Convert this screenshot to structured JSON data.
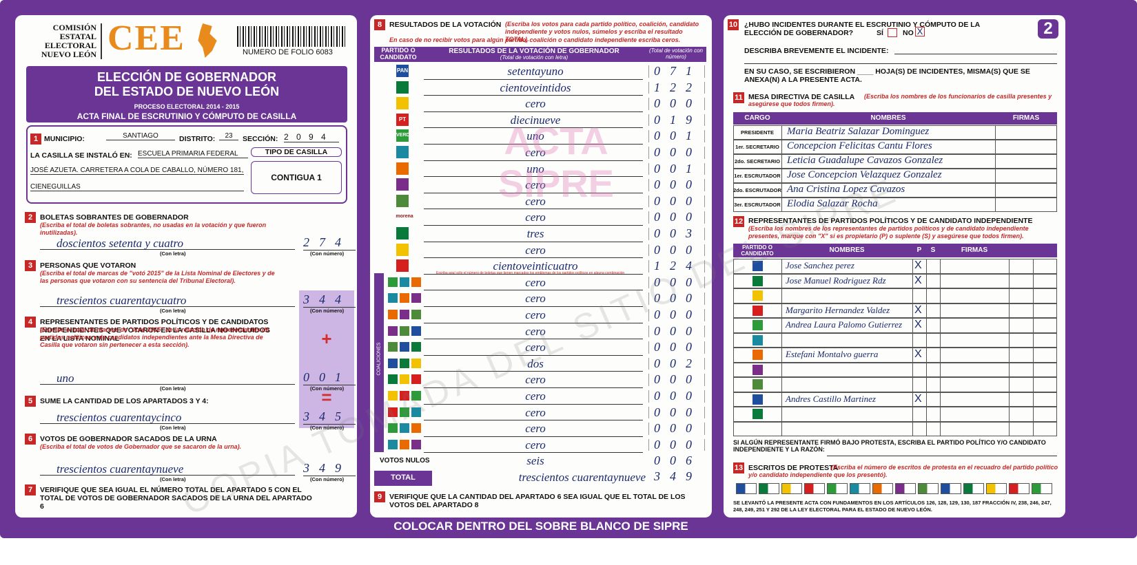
{
  "header": {
    "org_lines": [
      "COMISIÓN",
      "ESTATAL",
      "ELECTORAL",
      "NUEVO LEÓN"
    ],
    "logo": "CEE",
    "folio": "NUMERO DE FOLIO 6083",
    "title_lines": [
      "ELECCIÓN DE GOBERNADOR",
      "DEL ESTADO DE NUEVO LEÓN"
    ],
    "process": "PROCESO ELECTORAL 2014 - 2015",
    "act": "ACTA FINAL DE ESCRUTINIO Y CÓMPUTO DE CASILLA"
  },
  "section1": {
    "number": "1",
    "municipio_label": "MUNICIPIO:",
    "municipio": "SANTIAGO",
    "distrito_label": "DISTRITO:",
    "distrito": "23",
    "seccion_label": "SECCIÓN:",
    "seccion": "2 0 9 4",
    "installed_label": "LA CASILLA SE INSTALÓ EN:",
    "address_lines": [
      "ESCUELA PRIMARIA FEDERAL",
      "JOSÉ AZUETA. CARRETERA A COLA DE CABALLO, NÚMERO 181,",
      "CIENEGUILLAS"
    ],
    "tipo_label": "TIPO DE CASILLA",
    "tipo": "CONTIGUA 1"
  },
  "left": {
    "letter_label": "(Con letra)",
    "number_label": "(Con número)",
    "plus": "+",
    "equals": "=",
    "items": [
      {
        "number": "2",
        "title": "BOLETAS SOBRANTES DE GOBERNADOR",
        "note": "(Escriba el total de boletas sobrantes, no usadas en la votación y que fueron inutilizadas).",
        "words": "doscientos setenta y cuatro",
        "digits": "274"
      },
      {
        "number": "3",
        "title": "PERSONAS QUE VOTARON",
        "note": "(Escriba el total de marcas de \"votó 2015\" de la Lista Nominal de Electores y de las personas que votaron con su sentencia del Tribunal Electoral).",
        "words": "trescientos cuarentaycuatro",
        "digits": "344"
      },
      {
        "number": "4",
        "title": "REPRESENTANTES DE PARTIDOS POLÍTICOS Y DE CANDIDATOS INDEPENDIENTES QUE VOTARON EN LA CASILLA NO INCLUIDOS EN LA LISTA NOMINAL",
        "note": "(Escriba el total de marcas de \"votó 2015\" de la relación de representantes de partidos políticos y de candidatos independientes ante la Mesa Directiva de Casilla que votaron sin pertenecer a esta sección).",
        "words": "uno",
        "digits": "001"
      },
      {
        "number": "5",
        "title": "SUME LA CANTIDAD DE LOS APARTADOS 3 Y 4:",
        "words": "trescientos cuarentaycinco",
        "digits": "345"
      },
      {
        "number": "6",
        "title": "VOTOS DE GOBERNADOR SACADOS DE LA URNA",
        "note": "(Escriba el total de votos de Gobernador que se sacaron de la urna).",
        "words": "trescientos cuarentaynueve",
        "digits": "349"
      },
      {
        "number": "7",
        "title": "VERIFIQUE QUE SEA IGUAL EL NÚMERO TOTAL DEL APARTADO 5 CON EL TOTAL DE VOTOS DE GOBERNADOR SACADOS DE LA URNA DEL APARTADO 6"
      }
    ]
  },
  "section8": {
    "number": "8",
    "title": "RESULTADOS DE LA VOTACIÓN",
    "note": "(Escriba los votos para cada partido político, coalición, candidato independiente y votos nulos, súmelos y escriba el resultado TOTAL).",
    "note2": "En caso de no recibir votos para algún partido, coalición o candidato independiente escriba ceros.",
    "col1": "PARTIDO O CANDIDATO",
    "col2": "RESULTADOS DE LA VOTACIÓN DE GOBERNADOR",
    "col2_sub": "(Total de votación con letra)",
    "col3": "(Total de votación con número)",
    "coalition_note": "Escriba aquí sólo el número de boletas que tienen marcados los emblemas de los partidos políticos en alguna combinación",
    "coalitions_label": "COALICIONES",
    "watermark": [
      "ACTA",
      "SIPRE"
    ],
    "rows": [
      {
        "logo": "PAN",
        "words": "setentayuno",
        "digits": "071"
      },
      {
        "words": "cientoveintidos",
        "digits": "122"
      },
      {
        "words": "cero",
        "digits": "000"
      },
      {
        "logo": "PT",
        "words": "diecinueve",
        "digits": "019"
      },
      {
        "logo": "VERDE",
        "words": "uno",
        "digits": "001"
      },
      {
        "words": "cero",
        "digits": "000"
      },
      {
        "words": "uno",
        "digits": "001"
      },
      {
        "words": "cero",
        "digits": "000"
      },
      {
        "words": "cero",
        "digits": "000"
      },
      {
        "logo": "morena",
        "words": "cero",
        "digits": "000"
      },
      {
        "words": "tres",
        "digits": "003"
      },
      {
        "words": "cero",
        "digits": "000"
      },
      {
        "words": "cientoveinticuatro",
        "digits": "124"
      },
      {
        "words": "cero",
        "digits": "000"
      },
      {
        "words": "cero",
        "digits": "000"
      },
      {
        "words": "cero",
        "digits": "000"
      },
      {
        "words": "cero",
        "digits": "000"
      },
      {
        "words": "cero",
        "digits": "000"
      },
      {
        "words": "dos",
        "digits": "002"
      },
      {
        "words": "cero",
        "digits": "000"
      },
      {
        "words": "cero",
        "digits": "000"
      },
      {
        "words": "cero",
        "digits": "000"
      },
      {
        "words": "cero",
        "digits": "000"
      },
      {
        "words": "cero",
        "digits": "000"
      }
    ],
    "null_votes": {
      "label": "VOTOS NULOS",
      "words": "seis",
      "digits": "006"
    },
    "total": {
      "label": "TOTAL",
      "words": "trescientos cuarentaynueve",
      "digits": "349"
    }
  },
  "section9": {
    "number": "9",
    "text": "VERIFIQUE QUE LA CANTIDAD DEL APARTADO 6 SEA IGUAL QUE EL TOTAL DE LOS VOTOS DEL APARTADO 8"
  },
  "section10": {
    "number": "10",
    "question": "¿HUBO INCIDENTES DURANTE EL ESCRUTINIO Y CÓMPUTO DE LA ELECCIÓN DE GOBERNADOR?",
    "si": "SÍ",
    "no": "NO",
    "mark": "X",
    "describe": "DESCRIBA BREVEMENTE EL INCIDENTE:",
    "sheets": "EN SU CASO, SE ESCRIBIERON ____ HOJA(S) DE INCIDENTES, MISMA(S) QUE SE ANEXA(N) A LA PRESENTE ACTA."
  },
  "page_number": "2",
  "section11": {
    "number": "11",
    "title": "MESA DIRECTIVA DE CASILLA",
    "note": "(Escriba los nombres de los funcionarios de casilla presentes y asegúrese que todos firmen).",
    "headers": [
      "CARGO",
      "NOMBRES",
      "FIRMAS"
    ],
    "rows": [
      {
        "cargo": "PRESIDENTE",
        "name": "Maria Beatriz Salazar Dominguez"
      },
      {
        "cargo": "1er. SECRETARIO",
        "name": "Concepcion Felicitas Cantu Flores"
      },
      {
        "cargo": "2do. SECRETARIO",
        "name": "Leticia Guadalupe Cavazos Gonzalez"
      },
      {
        "cargo": "1er. ESCRUTADOR",
        "name": "Jose Concepcion Velazquez Gonzalez"
      },
      {
        "cargo": "2do. ESCRUTADOR",
        "name": "Ana Cristina Lopez Cavazos"
      },
      {
        "cargo": "3er. ESCRUTADOR",
        "name": "Elodia Salazar Rocha"
      }
    ]
  },
  "section12": {
    "number": "12",
    "title": "REPRESENTANTES DE PARTIDOS POLÍTICOS Y DE CANDIDATO INDEPENDIENTE",
    "note": "(Escriba los nombres de los representantes de partidos políticos y de candidato independiente presentes, marque con \"X\" si es propietario (P) o suplente (S) y asegúrese que todos firmen).",
    "headers": [
      "PARTIDO O CANDIDATO",
      "NOMBRES",
      "P",
      "S",
      "FIRMAS"
    ],
    "mark": "X",
    "rows": [
      "Jose Sanchez perez",
      "Jose Manuel Rodriguez Rdz",
      null,
      "Margarito Hernandez Valdez",
      "Andrea Laura Palomo Gutierrez",
      null,
      "Estefani Montalvo guerra",
      null,
      null,
      "Andres Castillo Martinez",
      null,
      null
    ],
    "protest_text": "SI ALGÚN REPRESENTANTE FIRMÓ BAJO PROTESTA, ESCRIBA EL PARTIDO POLÍTICO Y/O CANDIDATO INDEPENDIENTE Y LA RAZÓN:"
  },
  "section13": {
    "number": "13",
    "title": "ESCRITOS DE PROTESTA",
    "note": "(Escriba el número de escritos de protesta en el recuadro del partido político y/o candidato independiente que los presentó)."
  },
  "footer_text": "SE LEVANTÓ LA PRESENTE ACTA CON FUNDAMENTOS EN LOS ARTÍCULOS 126, 128, 129, 130, 187 FRACCIÓN IV, 238, 246, 247, 248, 249, 251 Y 292 DE LA LEY ELECTORAL PARA EL ESTADO DE NUEVO LEÓN.",
  "bottom_text": "COLOCAR DENTRO DEL SOBRE BLANCO DE SIPRE",
  "watermark": "COPIA TOMADA DEL SITIO DEL SIPRE"
}
